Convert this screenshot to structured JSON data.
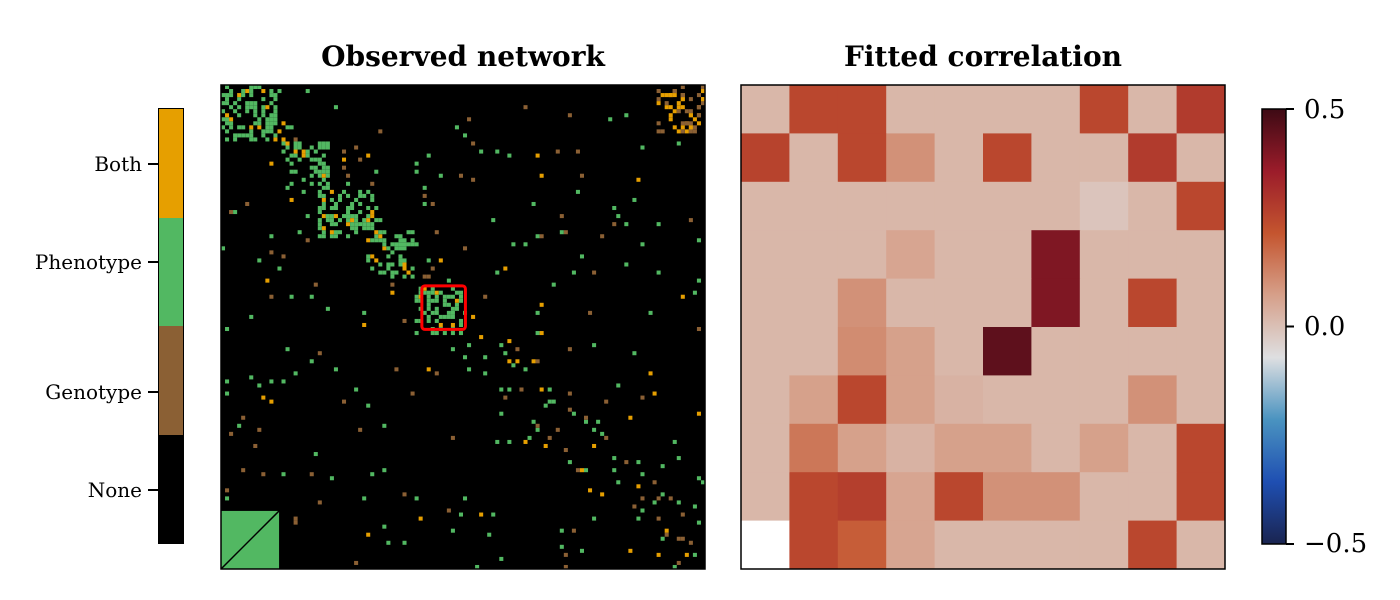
{
  "left_panel": {
    "title": "Observed network",
    "highlight_color": "#ff0000"
  },
  "right_panel": {
    "title": "Fitted correlation"
  },
  "category_legend": {
    "labels": [
      "Both",
      "Phenotype",
      "Genotype",
      "None"
    ],
    "colors": {
      "Both": "#e69f00",
      "Phenotype": "#52b862",
      "Genotype": "#8b6034",
      "None": "#000000"
    }
  },
  "colorbar": {
    "ticks": [
      "0.5",
      "0.0",
      "−0.5"
    ],
    "tick_values": [
      0.5,
      0.0,
      -0.5
    ],
    "range": [
      -0.5,
      0.5
    ],
    "colormap": [
      "#1a2450",
      "#1f4fb2",
      "#4a93c0",
      "#dedfe1",
      "#d6a08a",
      "#c4552f",
      "#9b1c2a",
      "#3d0a14"
    ]
  },
  "chart_data": [
    {
      "type": "heatmap",
      "title": "Observed network",
      "description_categories": [
        "Both",
        "Phenotype",
        "Genotype",
        "None"
      ],
      "blocks_phenotype": [
        {
          "r0": 0.88,
          "r1": 1.0,
          "c0": 0.0,
          "c1": 0.12
        },
        {
          "r0": 0.78,
          "r1": 0.88,
          "c0": 0.12,
          "c1": 0.22
        },
        {
          "r0": 0.68,
          "r1": 0.78,
          "c0": 0.2,
          "c1": 0.32
        },
        {
          "r0": 0.6,
          "r1": 0.7,
          "c0": 0.3,
          "c1": 0.4
        },
        {
          "r0": 0.48,
          "r1": 0.58,
          "c0": 0.4,
          "c1": 0.5
        }
      ],
      "highlight_region": {
        "r0": 0.495,
        "r1": 0.585,
        "c0": 0.415,
        "c1": 0.505
      }
    },
    {
      "type": "heatmap",
      "title": "Fitted correlation",
      "value_range": [
        -0.5,
        0.5
      ],
      "rows": 10,
      "cols": 10,
      "values": [
        [
          0.02,
          0.25,
          0.25,
          0.02,
          0.02,
          0.02,
          0.02,
          0.25,
          0.02,
          0.28
        ],
        [
          0.26,
          0.02,
          0.25,
          0.1,
          0.02,
          0.25,
          0.02,
          0.02,
          0.28,
          0.02
        ],
        [
          0.02,
          0.02,
          0.02,
          0.02,
          0.02,
          0.02,
          0.02,
          -0.01,
          0.02,
          0.25
        ],
        [
          0.02,
          0.02,
          0.02,
          0.06,
          0.02,
          0.02,
          0.4,
          0.02,
          0.02,
          0.02
        ],
        [
          0.02,
          0.02,
          0.1,
          0.02,
          0.02,
          0.02,
          0.4,
          0.02,
          0.25,
          0.02
        ],
        [
          0.02,
          0.02,
          0.11,
          0.07,
          0.02,
          0.45,
          0.02,
          0.02,
          0.02,
          0.02
        ],
        [
          0.02,
          0.07,
          0.25,
          0.07,
          0.03,
          0.02,
          0.02,
          0.02,
          0.1,
          0.02
        ],
        [
          0.02,
          0.15,
          0.07,
          0.03,
          0.07,
          0.07,
          0.02,
          0.07,
          0.02,
          0.25
        ],
        [
          0.02,
          0.25,
          0.27,
          0.06,
          0.25,
          0.1,
          0.1,
          0.02,
          0.02,
          0.25
        ],
        [
          0.0,
          0.25,
          0.2,
          0.06,
          0.02,
          0.02,
          0.02,
          0.02,
          0.25,
          0.02
        ]
      ]
    }
  ]
}
